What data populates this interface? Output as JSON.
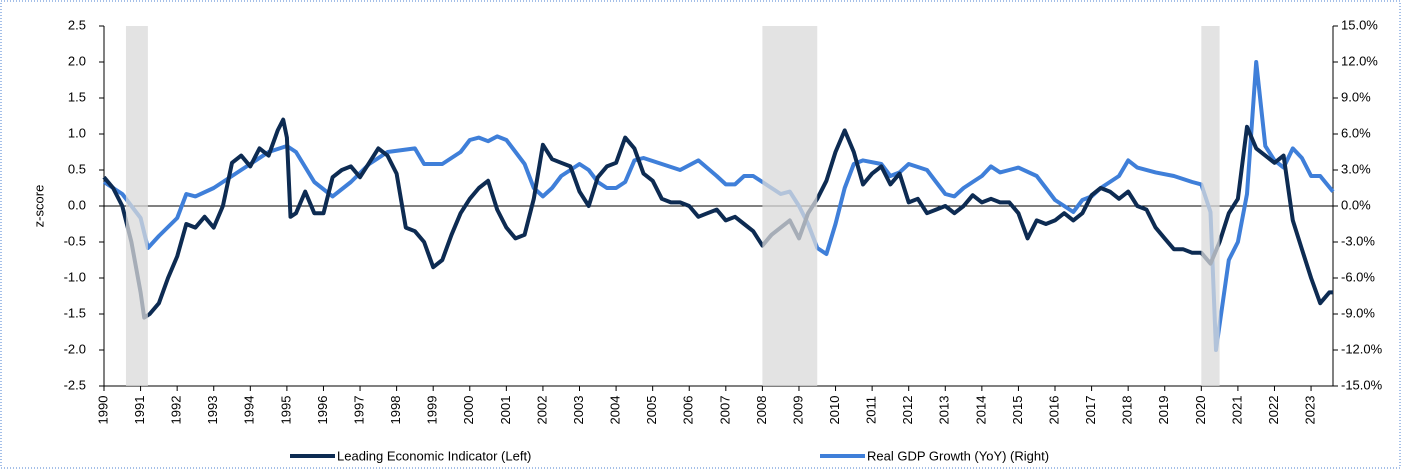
{
  "chart_data": {
    "type": "line",
    "y_label": "z-score",
    "xlim": [
      1990,
      2023.6
    ],
    "xticks": [
      1990,
      1991,
      1992,
      1993,
      1994,
      1995,
      1996,
      1997,
      1998,
      1999,
      2000,
      2001,
      2002,
      2003,
      2004,
      2005,
      2006,
      2007,
      2008,
      2009,
      2010,
      2011,
      2012,
      2013,
      2014,
      2015,
      2016,
      2017,
      2018,
      2019,
      2020,
      2021,
      2022,
      2023
    ],
    "ylim": [
      -2.5,
      2.5
    ],
    "yticks": [
      2.5,
      {
        "value": 2,
        "label": "2.0"
      },
      1.5,
      {
        "value": 1,
        "label": "1.0"
      },
      0.5,
      {
        "value": 0,
        "label": "0.0"
      },
      -0.5,
      {
        "value": -1,
        "label": "-1.0"
      },
      -1.5,
      {
        "value": -2,
        "label": "-2.0"
      },
      -2.5
    ],
    "y2lim": [
      -15,
      15
    ],
    "y2ticks": [
      {
        "value": 15,
        "label": "15.0%"
      },
      {
        "value": 12,
        "label": "12.0%"
      },
      {
        "value": 9,
        "label": "9.0%"
      },
      {
        "value": 6,
        "label": "6.0%"
      },
      {
        "value": 3,
        "label": "3.0%"
      },
      {
        "value": 0,
        "label": "0.0%"
      },
      {
        "value": -3,
        "label": "-3.0%"
      },
      {
        "value": -6,
        "label": "-6.0%"
      },
      {
        "value": -9,
        "label": "-9.0%"
      },
      {
        "value": -12,
        "label": "-12.0%"
      },
      {
        "value": -15,
        "label": "-15.0%"
      }
    ],
    "shaded_ranges": [
      [
        1990.6,
        1991.2
      ],
      [
        2008.0,
        2009.5
      ],
      [
        2020.0,
        2020.5
      ]
    ],
    "shade_color": "#d9d9d9",
    "series": [
      {
        "name": "Leading Economic Indicator (Left)",
        "color": "#0d2b52",
        "axis": "y",
        "x": [
          1990,
          1990.25,
          1990.5,
          1990.75,
          1991,
          1991.1,
          1991.25,
          1991.5,
          1991.75,
          1992,
          1992.25,
          1992.5,
          1992.75,
          1993,
          1993.25,
          1993.5,
          1993.75,
          1994,
          1994.25,
          1994.5,
          1994.75,
          1994.9,
          1995,
          1995.1,
          1995.25,
          1995.5,
          1995.75,
          1996,
          1996.25,
          1996.5,
          1996.75,
          1997,
          1997.25,
          1997.5,
          1997.75,
          1998,
          1998.25,
          1998.5,
          1998.75,
          1999,
          1999.25,
          1999.5,
          1999.75,
          2000,
          2000.25,
          2000.5,
          2000.75,
          2001,
          2001.25,
          2001.5,
          2001.75,
          2002,
          2002.25,
          2002.5,
          2002.75,
          2003,
          2003.25,
          2003.5,
          2003.75,
          2004,
          2004.25,
          2004.5,
          2004.75,
          2005,
          2005.25,
          2005.5,
          2005.75,
          2006,
          2006.25,
          2006.5,
          2006.75,
          2007,
          2007.25,
          2007.5,
          2007.75,
          2008,
          2008.25,
          2008.5,
          2008.75,
          2009,
          2009.25,
          2009.5,
          2009.75,
          2010,
          2010.25,
          2010.5,
          2010.75,
          2011,
          2011.25,
          2011.5,
          2011.75,
          2012,
          2012.25,
          2012.5,
          2012.75,
          2013,
          2013.25,
          2013.5,
          2013.75,
          2014,
          2014.25,
          2014.5,
          2014.75,
          2015,
          2015.25,
          2015.5,
          2015.75,
          2016,
          2016.25,
          2016.5,
          2016.75,
          2017,
          2017.25,
          2017.5,
          2017.75,
          2018,
          2018.25,
          2018.5,
          2018.75,
          2019,
          2019.25,
          2019.5,
          2019.75,
          2020,
          2020.25,
          2020.5,
          2020.75,
          2021,
          2021.25,
          2021.5,
          2021.75,
          2022,
          2022.25,
          2022.5,
          2022.75,
          2023,
          2023.25,
          2023.5,
          2023.6
        ],
        "values": [
          0.4,
          0.25,
          0,
          -0.5,
          -1.2,
          -1.55,
          -1.5,
          -1.35,
          -1,
          -0.7,
          -0.25,
          -0.3,
          -0.15,
          -0.3,
          0,
          0.6,
          0.7,
          0.55,
          0.8,
          0.7,
          1.05,
          1.2,
          0.95,
          -0.15,
          -0.1,
          0.2,
          -0.1,
          -0.1,
          0.4,
          0.5,
          0.55,
          0.4,
          0.6,
          0.8,
          0.7,
          0.45,
          -0.3,
          -0.35,
          -0.5,
          -0.85,
          -0.75,
          -0.4,
          -0.1,
          0.1,
          0.25,
          0.35,
          -0.05,
          -0.3,
          -0.45,
          -0.4,
          0.1,
          0.85,
          0.65,
          0.6,
          0.55,
          0.2,
          0,
          0.4,
          0.55,
          0.6,
          0.95,
          0.8,
          0.45,
          0.35,
          0.1,
          0.05,
          0.05,
          0,
          -0.15,
          -0.1,
          -0.05,
          -0.2,
          -0.15,
          -0.25,
          -0.35,
          -0.55,
          -0.4,
          -0.3,
          -0.2,
          -0.45,
          -0.1,
          0.1,
          0.35,
          0.75,
          1.05,
          0.75,
          0.3,
          0.45,
          0.55,
          0.3,
          0.45,
          0.05,
          0.1,
          -0.1,
          -0.05,
          0,
          -0.1,
          0,
          0.15,
          0.05,
          0.1,
          0.05,
          0.05,
          -0.1,
          -0.45,
          -0.2,
          -0.25,
          -0.2,
          -0.1,
          -0.2,
          -0.1,
          0.15,
          0.25,
          0.2,
          0.1,
          0.2,
          0,
          -0.05,
          -0.3,
          -0.45,
          -0.6,
          -0.6,
          -0.65,
          -0.65,
          -0.8,
          -0.5,
          -0.1,
          0.1,
          1.1,
          0.8,
          0.7,
          0.6,
          0.7,
          -0.2,
          -0.6,
          -1,
          -1.35,
          -1.2,
          -1.2
        ]
      },
      {
        "name": "Real GDP Growth (YoY) (Right)",
        "color": "#3f7fd9",
        "axis": "y2",
        "x": [
          1990,
          1990.5,
          1991,
          1991.2,
          1991.5,
          1992,
          1992.25,
          1992.5,
          1993,
          1993.5,
          1994,
          1994.5,
          1995,
          1995.25,
          1995.75,
          1996.25,
          1996.75,
          1997.25,
          1997.75,
          1998.5,
          1998.75,
          1999.25,
          1999.75,
          2000,
          2000.25,
          2000.5,
          2000.75,
          2001,
          2001.5,
          2001.75,
          2002,
          2002.25,
          2002.5,
          2002.75,
          2003,
          2003.25,
          2003.5,
          2003.75,
          2004,
          2004.25,
          2004.5,
          2004.75,
          2005.25,
          2005.75,
          2006.25,
          2006.75,
          2007,
          2007.25,
          2007.5,
          2007.75,
          2008,
          2008.25,
          2008.5,
          2008.75,
          2009,
          2009.25,
          2009.5,
          2009.75,
          2010,
          2010.25,
          2010.5,
          2010.75,
          2011.25,
          2011.5,
          2011.75,
          2012,
          2012.5,
          2012.75,
          2013,
          2013.25,
          2013.5,
          2013.75,
          2014,
          2014.25,
          2014.5,
          2014.75,
          2015,
          2015.5,
          2015.75,
          2016,
          2016.25,
          2016.5,
          2016.75,
          2017,
          2017.25,
          2017.5,
          2017.75,
          2018,
          2018.25,
          2018.75,
          2019.25,
          2019.75,
          2020,
          2020.25,
          2020.4,
          2020.75,
          2021,
          2021.25,
          2021.5,
          2021.75,
          2022,
          2022.25,
          2022.5,
          2022.75,
          2023,
          2023.25,
          2023.6
        ],
        "values": [
          2,
          1,
          -1,
          -3.5,
          -2.5,
          -1,
          1,
          0.8,
          1.5,
          2.5,
          3.5,
          4.5,
          5,
          4.5,
          2,
          0.8,
          2,
          3.5,
          4.5,
          4.8,
          3.5,
          3.5,
          4.5,
          5.5,
          5.7,
          5.4,
          5.8,
          5.5,
          3.5,
          1.5,
          0.8,
          1.5,
          2.5,
          3,
          3.5,
          3,
          2,
          1.5,
          1.5,
          2,
          3.8,
          4,
          3.5,
          3,
          3.8,
          2.5,
          1.8,
          1.8,
          2.5,
          2.5,
          2,
          1.5,
          1,
          1.2,
          0,
          -1.5,
          -3.5,
          -4,
          -1.5,
          1.5,
          3.5,
          3.8,
          3.5,
          2.5,
          2.8,
          3.5,
          3,
          2,
          1,
          0.8,
          1.5,
          2,
          2.5,
          3.3,
          2.8,
          3,
          3.2,
          2.5,
          1.5,
          0.5,
          0,
          -0.5,
          0.5,
          0.8,
          1.5,
          2,
          2.5,
          3.8,
          3.2,
          2.8,
          2.5,
          2,
          1.8,
          -0.5,
          -12,
          -4.5,
          -3,
          1,
          12,
          5,
          3.8,
          3.2,
          4.8,
          4,
          2.5,
          2.5,
          1.2
        ]
      }
    ]
  }
}
